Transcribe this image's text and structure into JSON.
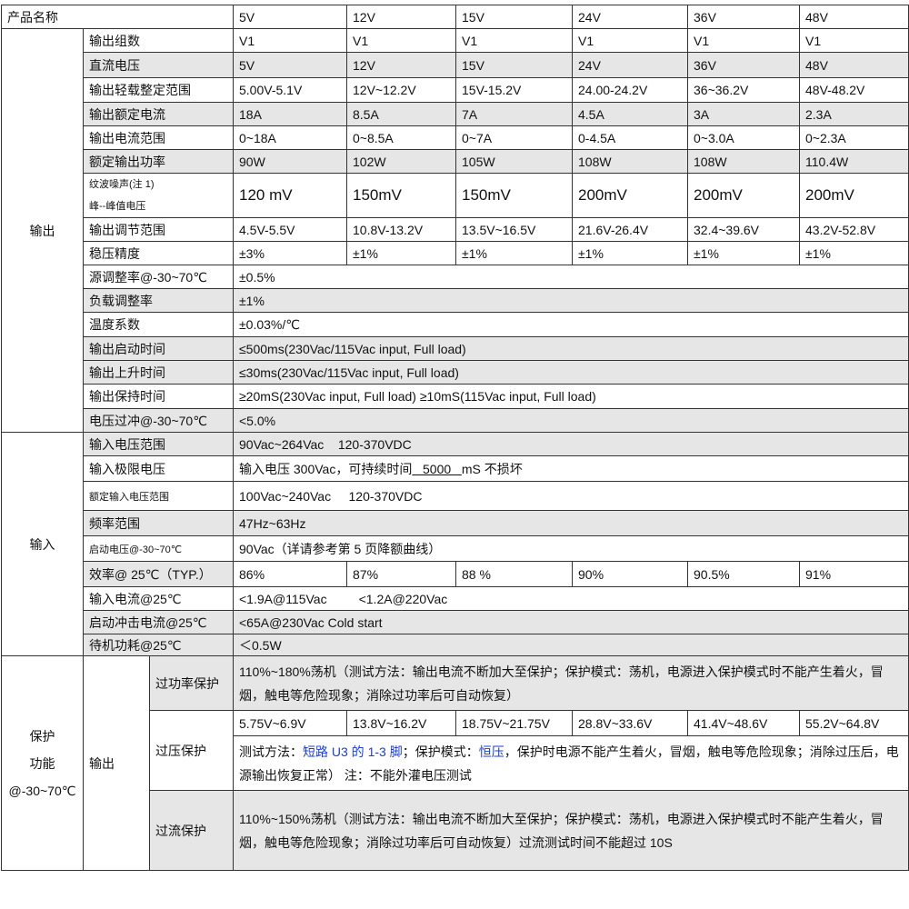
{
  "header": {
    "label": "产品名称",
    "models": [
      "5V",
      "12V",
      "15V",
      "24V",
      "36V",
      "48V"
    ]
  },
  "output": {
    "section_label": "输出",
    "rows": [
      {
        "label": "输出组数",
        "values": [
          "V1",
          "V1",
          "V1",
          "V1",
          "V1",
          "V1"
        ]
      },
      {
        "label": "直流电压",
        "values": [
          "5V",
          "12V",
          "15V",
          "24V",
          "36V",
          "48V"
        ]
      },
      {
        "label": "输出轻载整定范围",
        "values": [
          "5.00V-5.1V",
          "12V~12.2V",
          "15V-15.2V",
          "24.00-24.2V",
          "36~36.2V",
          "48V-48.2V"
        ]
      },
      {
        "label": "输出额定电流",
        "values": [
          "18A",
          "8.5A",
          "7A",
          "4.5A",
          "3A",
          "2.3A"
        ]
      },
      {
        "label": "输出电流范围",
        "values": [
          "0~18A",
          "0~8.5A",
          "0~7A",
          "0-4.5A",
          "0~3.0A",
          "0~2.3A"
        ]
      },
      {
        "label": "额定输出功率",
        "values": [
          "90W",
          "102W",
          "105W",
          "108W",
          "108W",
          "110.4W"
        ]
      },
      {
        "label": "纹波噪声(注 1)",
        "label2": "峰--峰值电压",
        "values": [
          "120 mV",
          "150mV",
          "150mV",
          "200mV",
          "200mV",
          "200mV"
        ]
      },
      {
        "label": "输出调节范围",
        "values": [
          "4.5V-5.5V",
          "10.8V-13.2V",
          "13.5V~16.5V",
          "21.6V-26.4V",
          "32.4~39.6V",
          "43.2V-52.8V"
        ]
      },
      {
        "label": "稳压精度",
        "values": [
          "±3%",
          "±1%",
          "±1%",
          "±1%",
          "±1%",
          "±1%"
        ]
      },
      {
        "label": "源调整率@-30~70℃",
        "value": "±0.5%"
      },
      {
        "label": "负载调整率",
        "value": "±1%"
      },
      {
        "label": "温度系数",
        "value": "±0.03%/℃"
      },
      {
        "label": "输出启动时间",
        "value": "≤500ms(230Vac/115Vac input, Full load)"
      },
      {
        "label": "输出上升时间",
        "value": "≤30ms(230Vac/115Vac input, Full load)"
      },
      {
        "label": "输出保持时间",
        "value": "≥20mS(230Vac input, Full load)    ≥10mS(115Vac input, Full load)"
      },
      {
        "label": "电压过冲@-30~70℃",
        "value": "<5.0%"
      }
    ]
  },
  "input": {
    "section_label": "输入",
    "rows": [
      {
        "label": "输入电压范围",
        "value": "90Vac~264Vac    120-370VDC"
      },
      {
        "label": "输入极限电压",
        "value_pre": "输入电压 300Vac，可持续时间",
        "value_ul": "   5000   ",
        "value_post": "mS 不损坏"
      },
      {
        "label": "额定输入电压范围",
        "value": "100Vac~240Vac     120-370VDC"
      },
      {
        "label": "频率范围",
        "value": "47Hz~63Hz"
      },
      {
        "label": "启动电压@-30~70℃",
        "value": "90Vac（详请参考第 5 页降额曲线）"
      },
      {
        "label": "效率@ 25℃（TYP.）",
        "values": [
          "86%",
          "87%",
          "88 %",
          "90%",
          "90.5%",
          "91%"
        ]
      },
      {
        "label": "输入电流@25℃",
        "value": "<1.9A@115Vac         <1.2A@220Vac"
      },
      {
        "label": "启动冲击电流@25℃",
        "value": "<65A@230Vac Cold start"
      },
      {
        "label": "待机功耗@25℃",
        "value": "＜0.5W"
      }
    ]
  },
  "protection": {
    "section_label": [
      "保护",
      "功能",
      "@-30~70℃"
    ],
    "sub_label": "输出",
    "over_power": {
      "label": "过功率保护",
      "text": "110%~180%荡机（测试方法：输出电流不断加大至保护；保护模式：荡机，电源进入保护模式时不能产生着火，冒烟，触电等危险现象；消除过功率后可自动恢复）"
    },
    "over_voltage": {
      "label": "过压保护",
      "values": [
        "5.75V~6.9V",
        "13.8V~16.2V",
        "18.75V~21.75V",
        "28.8V~33.6V",
        "41.4V~48.6V",
        "55.2V~64.8V"
      ],
      "segments": [
        "测试方法：",
        "短路 U3 的 1-3 脚",
        "；保护模式：",
        "恒压",
        "，保护时电源不能产生着火，冒烟，触电等危险现象；消除过压后，电源输出恢复正常）  注：不能外灌电压测试"
      ],
      "highlight_color": "#1a3fd6"
    },
    "over_current": {
      "label": "过流保护",
      "text": "110%~150%荡机（测试方法：输出电流不断加大至保护；保护模式：荡机，电源进入保护模式时不能产生着火，冒烟，触电等危险现象；消除过功率后可自动恢复）过流测试时间不能超过 10S"
    }
  }
}
